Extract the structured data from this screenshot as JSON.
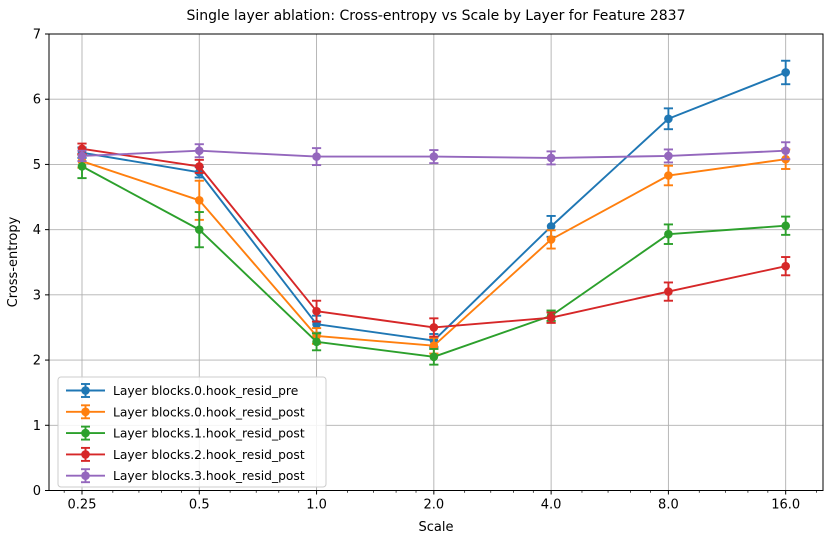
{
  "chart_data": {
    "type": "line",
    "title": "Single layer ablation: Cross-entropy vs Scale by Layer for Feature 2837",
    "xlabel": "Scale",
    "ylabel": "Cross-entropy",
    "x_scale": "log2",
    "x": [
      0.25,
      0.5,
      1.0,
      2.0,
      4.0,
      8.0,
      16.0
    ],
    "x_tick_labels": [
      "0.25",
      "0.5",
      "1.0",
      "2.0",
      "4.0",
      "8.0",
      "16.0"
    ],
    "y_ticks": [
      0,
      1,
      2,
      3,
      4,
      5,
      6,
      7
    ],
    "y_tick_labels": [
      "0",
      "1",
      "2",
      "3",
      "4",
      "5",
      "6",
      "7"
    ],
    "ylim": [
      0,
      7
    ],
    "grid": true,
    "legend_position": "lower left",
    "marker": "o",
    "error_bars": true,
    "style": {
      "background": "#ffffff",
      "grid_color": "#b0b0b0",
      "spine_color": "#000000"
    },
    "series": [
      {
        "name": "Layer blocks.0.hook_resid_pre",
        "color": "#1f77b4",
        "values": [
          5.18,
          4.88,
          2.55,
          2.3,
          4.05,
          5.7,
          6.41
        ],
        "errors": [
          0.08,
          0.08,
          0.13,
          0.1,
          0.16,
          0.16,
          0.18
        ]
      },
      {
        "name": "Layer blocks.0.hook_resid_post",
        "color": "#ff7f0e",
        "values": [
          5.05,
          4.45,
          2.37,
          2.22,
          3.85,
          4.83,
          5.08
        ],
        "errors": [
          0.1,
          0.3,
          0.12,
          0.12,
          0.14,
          0.15,
          0.15
        ]
      },
      {
        "name": "Layer blocks.1.hook_resid_post",
        "color": "#2ca02c",
        "values": [
          4.97,
          4.0,
          2.28,
          2.05,
          2.68,
          3.93,
          4.06
        ],
        "errors": [
          0.18,
          0.27,
          0.13,
          0.12,
          0.08,
          0.15,
          0.14
        ]
      },
      {
        "name": "Layer blocks.2.hook_resid_post",
        "color": "#d62728",
        "values": [
          5.24,
          4.97,
          2.75,
          2.5,
          2.65,
          3.05,
          3.44
        ],
        "errors": [
          0.08,
          0.1,
          0.16,
          0.14,
          0.08,
          0.14,
          0.14
        ]
      },
      {
        "name": "Layer blocks.3.hook_resid_post",
        "color": "#9467bd",
        "values": [
          5.13,
          5.21,
          5.12,
          5.12,
          5.1,
          5.13,
          5.21
        ],
        "errors": [
          0.08,
          0.1,
          0.13,
          0.1,
          0.1,
          0.1,
          0.13
        ]
      }
    ]
  }
}
